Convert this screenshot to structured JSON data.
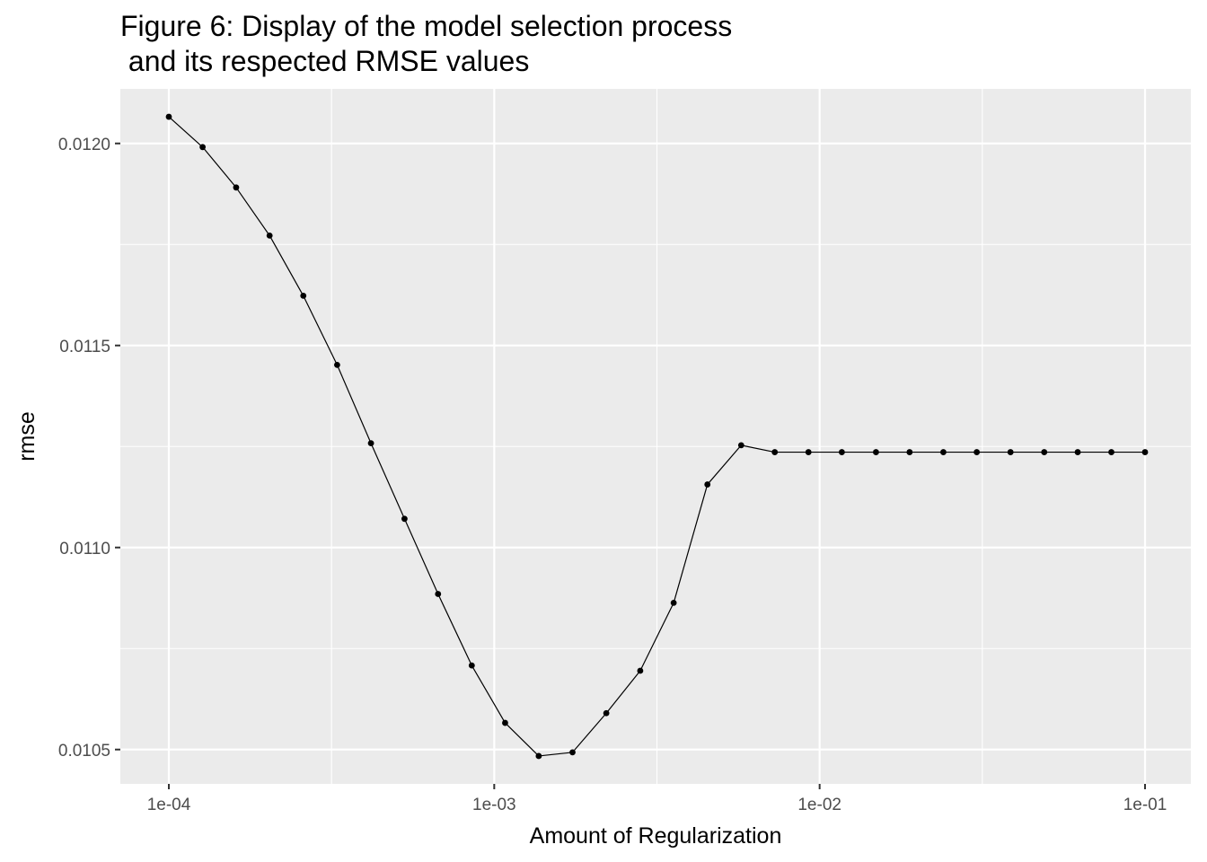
{
  "chart_data": {
    "type": "line",
    "title_lines": [
      "Figure 6: Display of the model selection process",
      " and its respected RMSE values"
    ],
    "xlabel": "Amount of Regularization",
    "ylabel": "rmse",
    "x_scale": "log10",
    "x_range": [
      0.0001,
      0.1
    ],
    "ylim": [
      0.010415,
      0.012135
    ],
    "x_ticks": [
      {
        "value": 0.0001,
        "label": "1e-04"
      },
      {
        "value": 0.001,
        "label": "1e-03"
      },
      {
        "value": 0.01,
        "label": "1e-02"
      },
      {
        "value": 0.1,
        "label": "1e-01"
      }
    ],
    "y_ticks": [
      {
        "value": 0.0105,
        "label": "0.0105"
      },
      {
        "value": 0.011,
        "label": "0.0110"
      },
      {
        "value": 0.0115,
        "label": "0.0115"
      },
      {
        "value": 0.012,
        "label": "0.0120"
      }
    ],
    "grid": true,
    "colors": {
      "panel": "#ebebeb",
      "grid": "#ffffff",
      "line": "#000000"
    },
    "series": [
      {
        "x": [
          0.0001,
          0.000127,
          0.000161,
          0.000204,
          0.000259,
          0.000329,
          0.000418,
          0.00053,
          0.000672,
          0.000853,
          0.00108,
          0.00137,
          0.00174,
          0.00221,
          0.00281,
          0.00356,
          0.00452,
          0.00574,
          0.00728,
          0.00924,
          0.0117,
          0.0149,
          0.0189,
          0.024,
          0.0304,
          0.0386,
          0.049,
          0.0621,
          0.0788,
          0.1
        ],
        "y": [
          0.012066,
          0.011991,
          0.011891,
          0.011772,
          0.011623,
          0.011452,
          0.011258,
          0.011071,
          0.010885,
          0.010708,
          0.010566,
          0.010484,
          0.010493,
          0.01059,
          0.010695,
          0.010863,
          0.011156,
          0.011253,
          0.011236,
          0.011236,
          0.011236,
          0.011236,
          0.011236,
          0.011236,
          0.011236,
          0.011236,
          0.011236,
          0.011236,
          0.011236,
          0.011236
        ]
      }
    ]
  }
}
